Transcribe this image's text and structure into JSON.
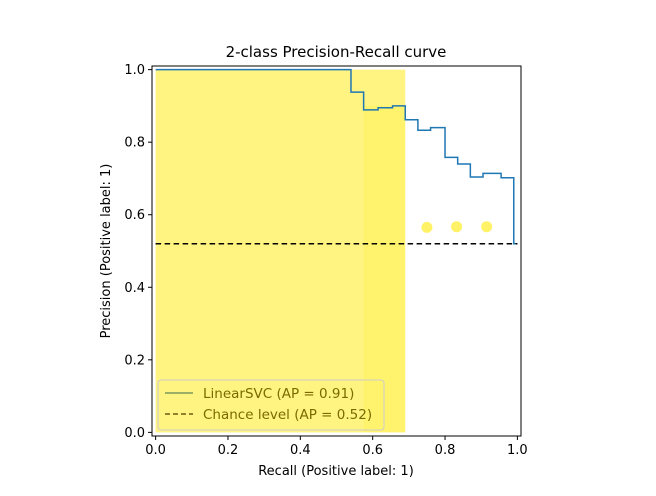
{
  "chart_data": {
    "type": "line",
    "title": "2-class Precision-Recall curve",
    "xlabel": "Recall (Positive label: 1)",
    "ylabel": "Precision (Positive label: 1)",
    "xlim": [
      -0.01,
      1.01
    ],
    "ylim": [
      -0.01,
      1.01
    ],
    "xticks": [
      0.0,
      0.2,
      0.4,
      0.6,
      0.8,
      1.0
    ],
    "yticks": [
      0.0,
      0.2,
      0.4,
      0.6,
      0.8,
      1.0
    ],
    "xtick_labels": [
      "0.0",
      "0.2",
      "0.4",
      "0.6",
      "0.8",
      "1.0"
    ],
    "ytick_labels": [
      "0.0",
      "0.2",
      "0.4",
      "0.6",
      "0.8",
      "1.0"
    ],
    "series": [
      {
        "name": "LinearSVC (AP = 0.91)",
        "style": "step",
        "color": "#1f77b4",
        "recall": [
          0.0,
          0.54,
          0.54,
          0.575,
          0.575,
          0.615,
          0.615,
          0.655,
          0.655,
          0.69,
          0.69,
          0.725,
          0.725,
          0.76,
          0.76,
          0.8,
          0.8,
          0.835,
          0.835,
          0.87,
          0.87,
          0.905,
          0.905,
          0.955,
          0.955,
          0.99,
          0.99,
          1.0
        ],
        "precision": [
          1.0,
          1.0,
          0.938,
          0.938,
          0.889,
          0.889,
          0.895,
          0.895,
          0.9,
          0.9,
          0.862,
          0.862,
          0.833,
          0.833,
          0.84,
          0.84,
          0.758,
          0.758,
          0.74,
          0.74,
          0.704,
          0.704,
          0.714,
          0.714,
          0.702,
          0.702,
          0.52,
          0.52
        ]
      },
      {
        "name": "Chance level (AP = 0.52)",
        "style": "dashed",
        "color": "#000000",
        "recall": [
          0.0,
          1.0
        ],
        "precision": [
          0.52,
          0.52
        ]
      }
    ],
    "highlight_color": "#ffee33",
    "highlight_bands": [
      {
        "x0": 0.0,
        "x1": 0.69,
        "y0": 0.0,
        "y1": 1.0
      },
      {
        "x0": 0.575,
        "x1": 0.69,
        "y0": 0.0,
        "y1": 0.9
      }
    ],
    "markers": [
      {
        "x": 0.75,
        "y": 0.565
      },
      {
        "x": 0.832,
        "y": 0.567
      },
      {
        "x": 0.915,
        "y": 0.567
      }
    ],
    "legend": {
      "placement": "lower-left",
      "entries": [
        "LinearSVC (AP = 0.91)",
        "Chance level (AP = 0.52)"
      ],
      "colors": [
        "#7a9a5a",
        "#6b5a10"
      ],
      "text_color": "#7a6a00"
    }
  }
}
